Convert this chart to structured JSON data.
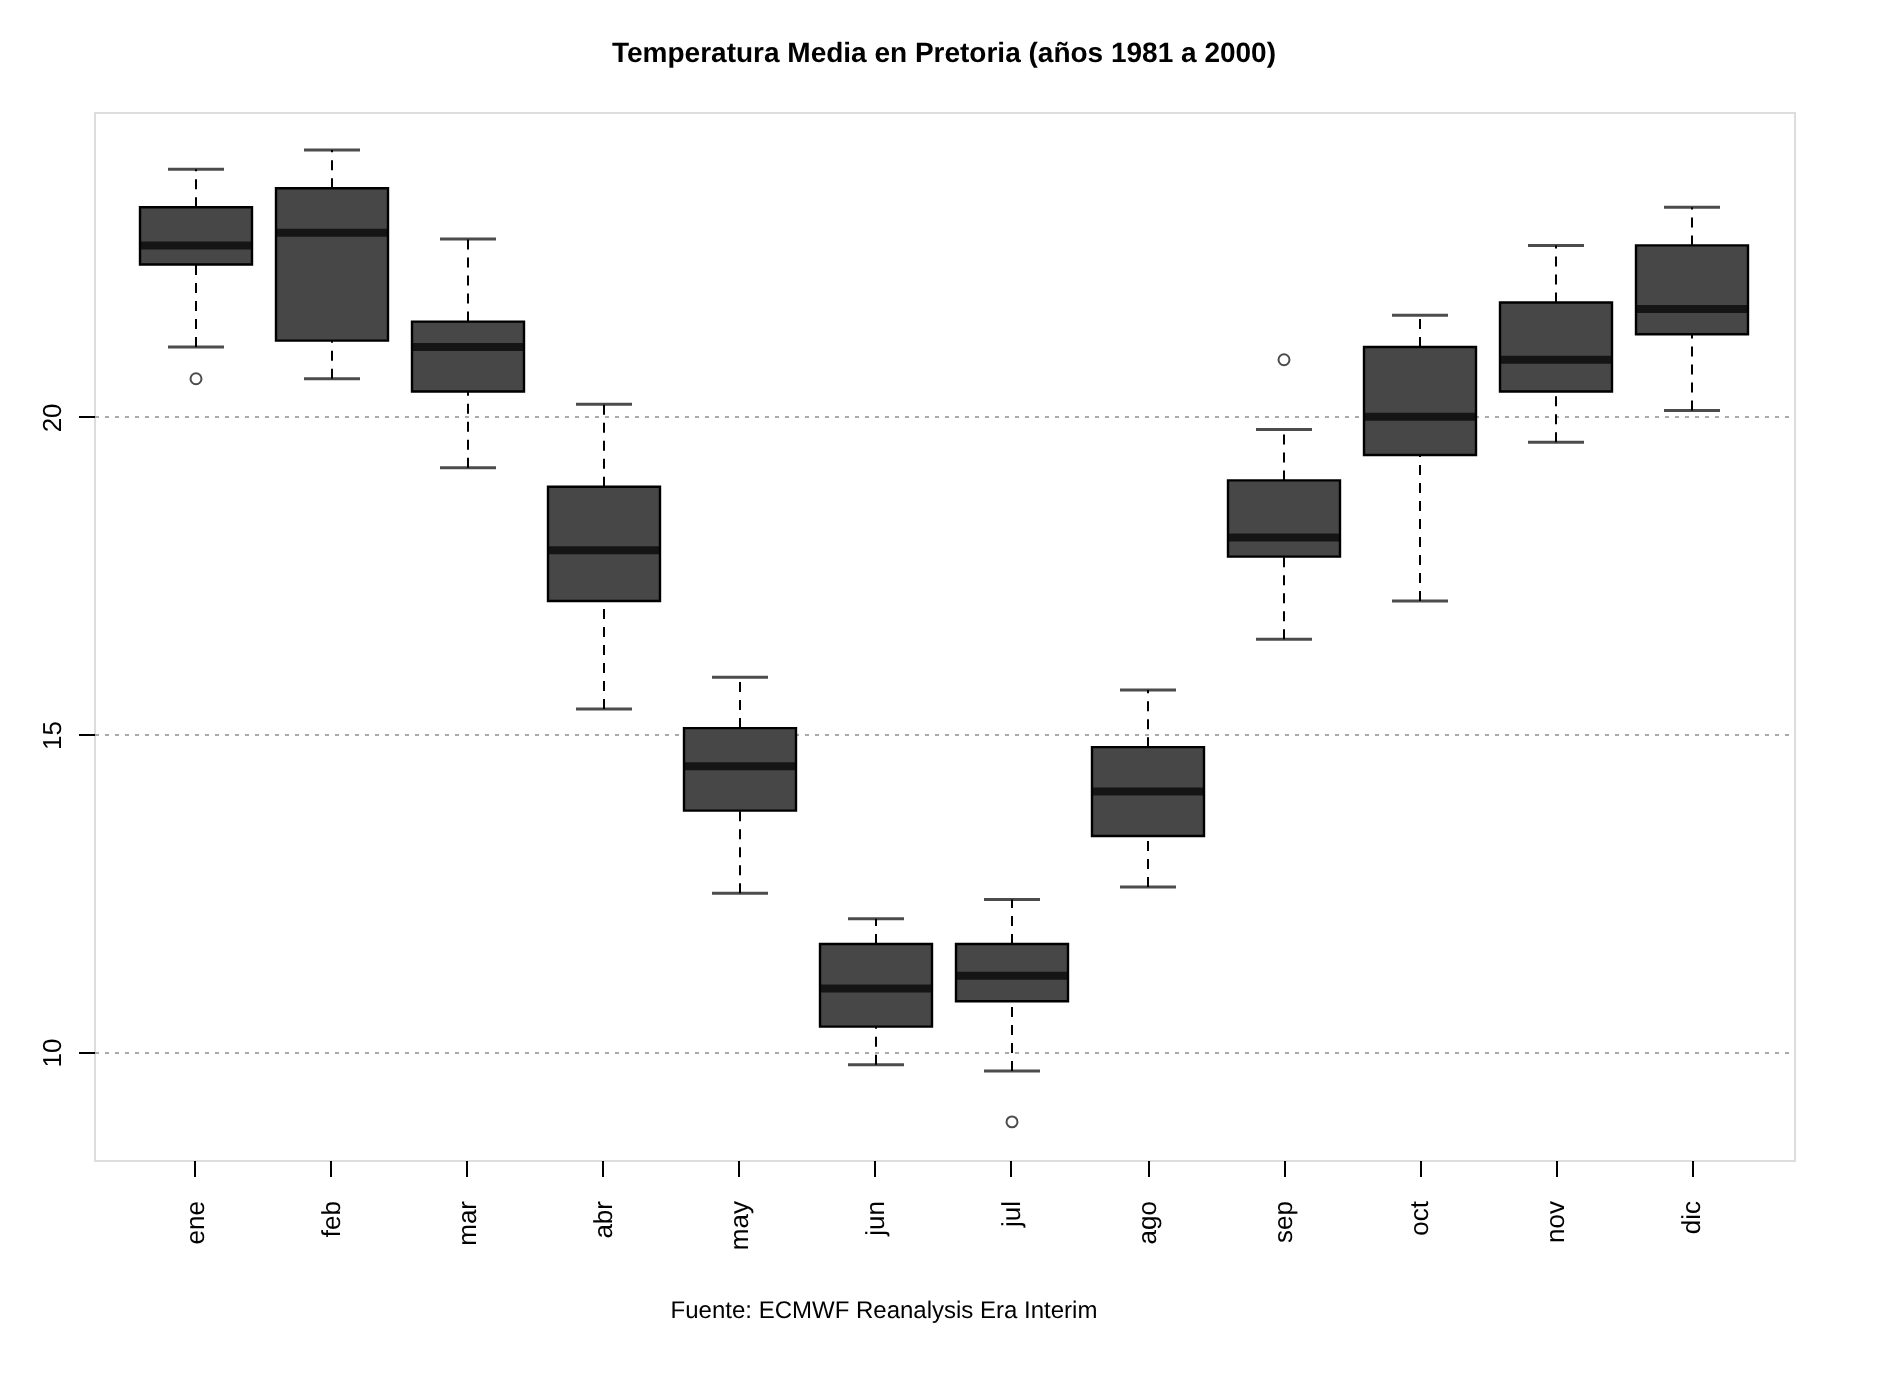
{
  "chart_data": {
    "type": "box",
    "title": "Temperatura Media en Pretoria (años 1981 a 2000)",
    "categories": [
      "ene",
      "feb",
      "mar",
      "abr",
      "may",
      "jun",
      "jul",
      "ago",
      "sep",
      "oct",
      "nov",
      "dic"
    ],
    "color": "#474747",
    "boxes": [
      {
        "low": 21.1,
        "q1": 22.4,
        "median": 22.7,
        "q3": 23.3,
        "high": 23.9,
        "outliers": [
          20.6
        ]
      },
      {
        "low": 20.6,
        "q1": 21.2,
        "median": 22.9,
        "q3": 23.6,
        "high": 24.2
      },
      {
        "low": 19.2,
        "q1": 20.4,
        "median": 21.1,
        "q3": 21.5,
        "high": 22.8
      },
      {
        "low": 15.4,
        "q1": 17.1,
        "median": 17.9,
        "q3": 18.9,
        "high": 20.2
      },
      {
        "low": 12.5,
        "q1": 13.8,
        "median": 14.5,
        "q3": 15.1,
        "high": 15.9
      },
      {
        "low": 9.8,
        "q1": 10.4,
        "median": 11.0,
        "q3": 11.7,
        "high": 12.1
      },
      {
        "low": 9.7,
        "q1": 10.8,
        "median": 11.2,
        "q3": 11.7,
        "high": 12.4,
        "outliers": [
          8.9
        ]
      },
      {
        "low": 12.6,
        "q1": 13.4,
        "median": 14.1,
        "q3": 14.8,
        "high": 15.7
      },
      {
        "low": 16.5,
        "q1": 17.8,
        "median": 18.1,
        "q3": 19.0,
        "high": 19.8,
        "outliers": [
          20.9
        ]
      },
      {
        "low": 17.1,
        "q1": 19.4,
        "median": 20.0,
        "q3": 21.1,
        "high": 21.6
      },
      {
        "low": 19.6,
        "q1": 20.4,
        "median": 20.9,
        "q3": 21.8,
        "high": 22.7
      },
      {
        "low": 20.1,
        "q1": 21.3,
        "median": 21.7,
        "q3": 22.7,
        "high": 23.3
      }
    ],
    "ylim": [
      8.3,
      24.8
    ],
    "yticks": [
      10,
      15,
      20
    ],
    "grid": "y",
    "annotations": [
      "Fuente: ECMWF Reanalysis Era Interim"
    ]
  }
}
